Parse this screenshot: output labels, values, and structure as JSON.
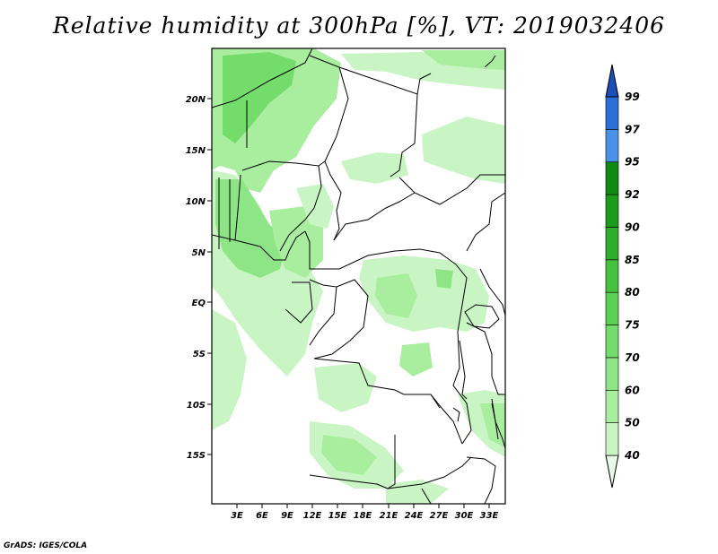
{
  "title": "Relative humidity at 300hPa [%], VT: 2019032406",
  "credit": "GrADS: IGES/COLA",
  "map": {
    "variable": "Relative humidity",
    "level": "300hPa",
    "units": "%",
    "valid_time": "2019032406",
    "lat_labels": [
      "20N",
      "15N",
      "10N",
      "5N",
      "EQ",
      "5S",
      "10S",
      "15S"
    ],
    "lon_labels": [
      "3E",
      "6E",
      "9E",
      "12E",
      "15E",
      "18E",
      "21E",
      "24E",
      "27E",
      "30E",
      "33E"
    ]
  },
  "colorbar": {
    "labels": [
      "40",
      "50",
      "60",
      "70",
      "75",
      "80",
      "85",
      "90",
      "92",
      "95",
      "97",
      "99"
    ],
    "colors": [
      "#e6fae6",
      "#c9f5c4",
      "#a9ee9f",
      "#8ee585",
      "#74dc6a",
      "#5ad152",
      "#45c23e",
      "#2fae2b",
      "#1b9c1a",
      "#108a10",
      "#4a92e8",
      "#2a6fd8",
      "#1c4fb8"
    ]
  }
}
